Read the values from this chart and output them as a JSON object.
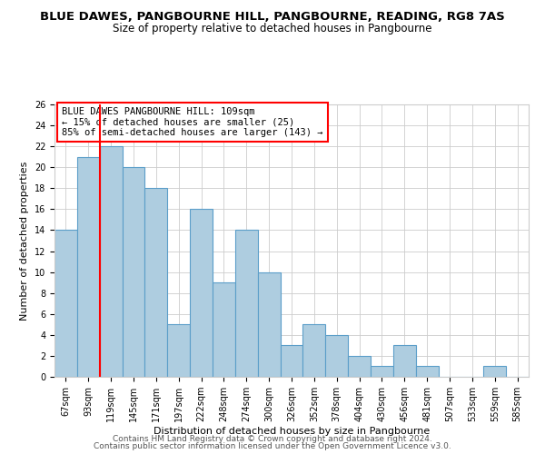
{
  "title": "BLUE DAWES, PANGBOURNE HILL, PANGBOURNE, READING, RG8 7AS",
  "subtitle": "Size of property relative to detached houses in Pangbourne",
  "xlabel": "Distribution of detached houses by size in Pangbourne",
  "ylabel": "Number of detached properties",
  "footer_line1": "Contains HM Land Registry data © Crown copyright and database right 2024.",
  "footer_line2": "Contains public sector information licensed under the Open Government Licence v3.0.",
  "bin_labels": [
    "67sqm",
    "93sqm",
    "119sqm",
    "145sqm",
    "171sqm",
    "197sqm",
    "222sqm",
    "248sqm",
    "274sqm",
    "300sqm",
    "326sqm",
    "352sqm",
    "378sqm",
    "404sqm",
    "430sqm",
    "456sqm",
    "481sqm",
    "507sqm",
    "533sqm",
    "559sqm",
    "585sqm"
  ],
  "bar_heights": [
    14,
    21,
    22,
    20,
    18,
    5,
    16,
    9,
    14,
    10,
    3,
    5,
    4,
    2,
    1,
    3,
    1,
    0,
    0,
    1,
    0
  ],
  "bar_color": "#aecde0",
  "bar_edge_color": "#5b9ec9",
  "property_line_color": "red",
  "property_line_x": 1.5,
  "ylim": [
    0,
    26
  ],
  "yticks": [
    0,
    2,
    4,
    6,
    8,
    10,
    12,
    14,
    16,
    18,
    20,
    22,
    24,
    26
  ],
  "annotation_box_text": "BLUE DAWES PANGBOURNE HILL: 109sqm\n← 15% of detached houses are smaller (25)\n85% of semi-detached houses are larger (143) →",
  "background_color": "#ffffff",
  "grid_color": "#cccccc",
  "title_fontsize": 9.5,
  "subtitle_fontsize": 8.5,
  "axis_label_fontsize": 8,
  "tick_fontsize": 7,
  "annotation_fontsize": 7.5,
  "footer_fontsize": 6.5
}
